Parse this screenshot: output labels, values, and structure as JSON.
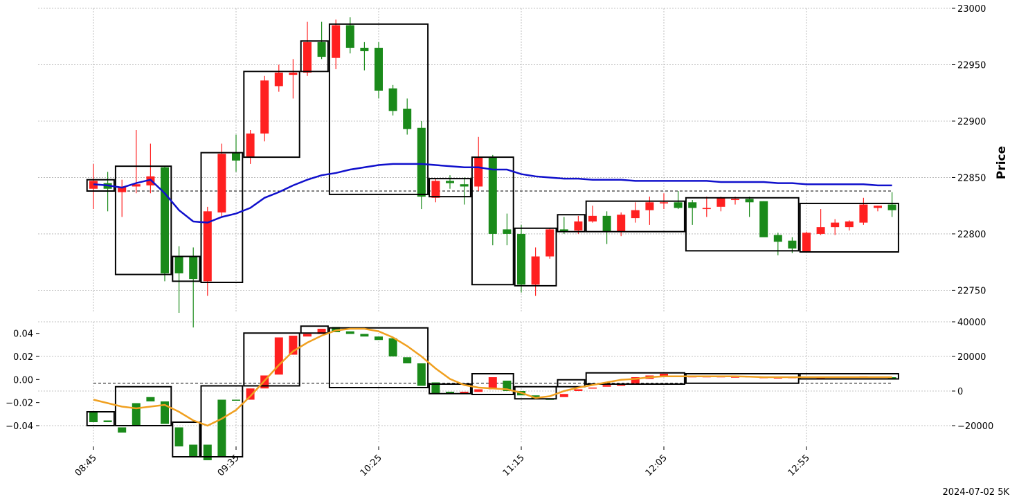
{
  "footer_text": "2024-07-02 5K",
  "colors": {
    "up": "#1a8a1a",
    "down": "#ff2020",
    "ma_price": "#1010cc",
    "ma_volume": "#f0a020",
    "box": "#000000",
    "grid": "#b0b0b0"
  },
  "chart_data": [
    {
      "type": "candlestick",
      "panel": "price",
      "ylabel": "Price",
      "ylim": [
        22730,
        23000
      ],
      "yticks": [
        22750,
        22800,
        22850,
        22900,
        22950,
        23000
      ],
      "x": [
        "08:45",
        "08:50",
        "08:55",
        "09:00",
        "09:05",
        "09:10",
        "09:15",
        "09:20",
        "09:25",
        "09:30",
        "09:35",
        "09:40",
        "09:45",
        "09:50",
        "09:55",
        "10:00",
        "10:05",
        "10:10",
        "10:15",
        "10:20",
        "10:25",
        "10:30",
        "10:35",
        "10:40",
        "10:45",
        "10:50",
        "10:55",
        "11:00",
        "11:05",
        "11:10",
        "11:15",
        "11:20",
        "11:25",
        "11:30",
        "11:35",
        "11:40",
        "11:45",
        "11:50",
        "11:55",
        "12:00",
        "12:05",
        "12:10",
        "12:15",
        "12:20",
        "12:25",
        "12:30",
        "12:35",
        "12:40",
        "12:45",
        "12:50",
        "12:55",
        "13:00",
        "13:05",
        "13:10",
        "13:15",
        "13:20",
        "13:25"
      ],
      "xticks": [
        "08:45",
        "09:35",
        "10:25",
        "11:15",
        "12:05",
        "12:55"
      ],
      "ohlc": [
        [
          22840,
          22862,
          22822,
          22847
        ],
        [
          22845,
          22855,
          22820,
          22840
        ],
        [
          22837,
          22848,
          22815,
          22842
        ],
        [
          22842,
          22892,
          22836,
          22844
        ],
        [
          22843,
          22880,
          22836,
          22851
        ],
        [
          22859,
          22860,
          22758,
          22765
        ],
        [
          22780,
          22789,
          22730,
          22765
        ],
        [
          22780,
          22788,
          22717,
          22760
        ],
        [
          22758,
          22824,
          22745,
          22820
        ],
        [
          22819,
          22880,
          22815,
          22871
        ],
        [
          22872,
          22888,
          22855,
          22865
        ],
        [
          22868,
          22892,
          22862,
          22889
        ],
        [
          22889,
          22940,
          22882,
          22936
        ],
        [
          22931,
          22950,
          22926,
          22943
        ],
        [
          22941,
          22955,
          22920,
          22943
        ],
        [
          22943,
          22988,
          22940,
          22970
        ],
        [
          22970,
          22988,
          22955,
          22957
        ],
        [
          22956,
          22990,
          22946,
          22985
        ],
        [
          22985,
          22992,
          22960,
          22965
        ],
        [
          22965,
          22970,
          22945,
          22962
        ],
        [
          22965,
          22970,
          22920,
          22927
        ],
        [
          22929,
          22932,
          22905,
          22909
        ],
        [
          22911,
          22920,
          22888,
          22893
        ],
        [
          22894,
          22900,
          22822,
          22833
        ],
        [
          22832,
          22849,
          22828,
          22847
        ],
        [
          22847,
          22852,
          22840,
          22845
        ],
        [
          22844,
          22850,
          22826,
          22842
        ],
        [
          22842,
          22886,
          22838,
          22868
        ],
        [
          22868,
          22870,
          22790,
          22800
        ],
        [
          22804,
          22818,
          22790,
          22800
        ],
        [
          22800,
          22808,
          22748,
          22755
        ],
        [
          22755,
          22788,
          22745,
          22780
        ],
        [
          22780,
          22805,
          22778,
          22804
        ],
        [
          22804,
          22815,
          22800,
          22802
        ],
        [
          22803,
          22816,
          22800,
          22811
        ],
        [
          22811,
          22825,
          22810,
          22816
        ],
        [
          22816,
          22820,
          22791,
          22802
        ],
        [
          22802,
          22819,
          22798,
          22817
        ],
        [
          22814,
          22828,
          22810,
          22821
        ],
        [
          22821,
          22833,
          22808,
          22828
        ],
        [
          22827,
          22836,
          22822,
          22828
        ],
        [
          22828,
          22838,
          22822,
          22823
        ],
        [
          22828,
          22830,
          22808,
          22823
        ],
        [
          22822,
          22833,
          22815,
          22823
        ],
        [
          22824,
          22833,
          22820,
          22832
        ],
        [
          22830,
          22833,
          22826,
          22831
        ],
        [
          22831,
          22833,
          22815,
          22828
        ],
        [
          22829,
          22829,
          22798,
          22797
        ],
        [
          22799,
          22801,
          22781,
          22793
        ],
        [
          22794,
          22797,
          22783,
          22787
        ],
        [
          22784,
          22802,
          22784,
          22801
        ],
        [
          22800,
          22822,
          22799,
          22806
        ],
        [
          22806,
          22813,
          22799,
          22810
        ],
        [
          22806,
          22812,
          22803,
          22811
        ],
        [
          22810,
          22832,
          22808,
          22826
        ],
        [
          22823,
          22825,
          22820,
          22825
        ],
        [
          22826,
          22837,
          22815,
          22821
        ]
      ],
      "series": [
        {
          "name": "",
          "values": [
            22844,
            22843,
            22841,
            22845,
            22848,
            22836,
            22821,
            22811,
            22810,
            22815,
            22818,
            22823,
            22832,
            22837,
            22843,
            22848,
            22852,
            22854,
            22857,
            22859,
            22861,
            22862,
            22862,
            22862,
            22861,
            22860,
            22859,
            22859,
            22857,
            22857,
            22853,
            22851,
            22850,
            22849,
            22849,
            22848,
            22848,
            22848,
            22847,
            22847,
            22847,
            22847,
            22847,
            22847,
            22846,
            22846,
            22846,
            22846,
            22845,
            22845,
            22844,
            22844,
            22844,
            22844,
            22844,
            22843,
            22843
          ]
        }
      ],
      "reference_line": 22838,
      "boxes": [
        {
          "from": "08:45",
          "to": "08:50",
          "low": 22838,
          "high": 22848
        },
        {
          "from": "08:55",
          "to": "09:10",
          "low": 22764,
          "high": 22860
        },
        {
          "from": "09:15",
          "to": "09:20",
          "low": 22758,
          "high": 22780
        },
        {
          "from": "09:25",
          "to": "09:35",
          "low": 22757,
          "high": 22872
        },
        {
          "from": "09:40",
          "to": "09:55",
          "low": 22868,
          "high": 22944
        },
        {
          "from": "10:00",
          "to": "10:05",
          "low": 22944,
          "high": 22971
        },
        {
          "from": "10:10",
          "to": "10:40",
          "low": 22835,
          "high": 22986
        },
        {
          "from": "10:45",
          "to": "10:55",
          "low": 22833,
          "high": 22849
        },
        {
          "from": "11:00",
          "to": "11:10",
          "low": 22755,
          "high": 22868
        },
        {
          "from": "11:15",
          "to": "11:25",
          "low": 22754,
          "high": 22805
        },
        {
          "from": "11:30",
          "to": "11:35",
          "low": 22802,
          "high": 22817
        },
        {
          "from": "11:40",
          "to": "12:10",
          "low": 22802,
          "high": 22829
        },
        {
          "from": "12:15",
          "to": "12:50",
          "low": 22785,
          "high": 22832
        },
        {
          "from": "12:55",
          "to": "13:25",
          "low": 22784,
          "high": 22827
        }
      ]
    },
    {
      "type": "bar",
      "panel": "indicator",
      "ylim_left": [
        -0.055,
        0.05
      ],
      "yticks_left": [
        -0.04,
        -0.02,
        0.0,
        0.02,
        0.04
      ],
      "ylim_right": [
        -30000,
        40000
      ],
      "yticks_right": [
        -20000,
        0,
        20000,
        40000
      ],
      "bars": [
        [
          -12000,
          -18000
        ],
        [
          -17000,
          -18000
        ],
        [
          -21000,
          -24000
        ],
        [
          -7000,
          -20000
        ],
        [
          -3500,
          -6000
        ],
        [
          -6000,
          -19000
        ],
        [
          -21000,
          -32000
        ],
        [
          -31000,
          -38000
        ],
        [
          -31000,
          -40000
        ],
        [
          -5000,
          -38000
        ],
        [
          -5000,
          -5500
        ],
        [
          -5000,
          1500
        ],
        [
          1500,
          9000
        ],
        [
          9500,
          31000
        ],
        [
          21000,
          32000
        ],
        [
          31500,
          33000
        ],
        [
          33000,
          36000
        ],
        [
          37000,
          34000
        ],
        [
          34500,
          33000
        ],
        [
          33000,
          31500
        ],
        [
          31500,
          29500
        ],
        [
          30500,
          20000
        ],
        [
          19500,
          16000
        ],
        [
          16000,
          3000
        ],
        [
          5000,
          -1500
        ],
        [
          -400,
          -1500
        ],
        [
          -1500,
          -400
        ],
        [
          -500,
          1000
        ],
        [
          1000,
          8000
        ],
        [
          6000,
          0
        ],
        [
          0,
          -2500
        ],
        [
          -2500,
          -4500
        ],
        [
          -4500,
          -5000
        ],
        [
          -3500,
          -1700
        ],
        [
          0,
          1000
        ],
        [
          1500,
          2000
        ],
        [
          2500,
          3500
        ],
        [
          3000,
          4000
        ],
        [
          4500,
          8000
        ],
        [
          7000,
          9000
        ],
        [
          8500,
          10000
        ],
        [
          8500,
          9000
        ],
        [
          8000,
          8500
        ],
        [
          8000,
          8500
        ],
        [
          8000,
          8500
        ],
        [
          8000,
          8300
        ],
        [
          8000,
          8500
        ],
        [
          7500,
          8000
        ],
        [
          7500,
          7800
        ],
        [
          7800,
          8000
        ],
        [
          8000,
          8300
        ],
        [
          7800,
          8000
        ],
        [
          8000,
          8200
        ],
        [
          8000,
          8200
        ],
        [
          8000,
          8500
        ],
        [
          8000,
          8300
        ],
        [
          8000,
          7500
        ]
      ],
      "series": [
        {
          "name": "",
          "values": [
            -5000,
            -7000,
            -9000,
            -10000,
            -9000,
            -8000,
            -12000,
            -17000,
            -20000,
            -16000,
            -11000,
            -3000,
            6000,
            15000,
            23000,
            28000,
            32000,
            35000,
            36000,
            36000,
            34500,
            31000,
            26000,
            20000,
            13000,
            7000,
            3500,
            2000,
            1500,
            1000,
            -1000,
            -4000,
            -3000,
            0,
            2000,
            3500,
            5000,
            6500,
            7000,
            8000,
            8500,
            8500,
            8500,
            8500,
            8500,
            8500,
            8300,
            8000,
            8000,
            8000,
            8000,
            8000,
            8000,
            8000,
            8000,
            8000,
            8000
          ]
        }
      ],
      "reference_line": 4500,
      "boxes": [
        {
          "from": "08:45",
          "to": "08:50",
          "low": -20000,
          "high": -12000
        },
        {
          "from": "08:55",
          "to": "09:10",
          "low": -20000,
          "high": 2500
        },
        {
          "from": "09:15",
          "to": "09:20",
          "low": -38000,
          "high": -18000
        },
        {
          "from": "09:25",
          "to": "09:35",
          "low": -38000,
          "high": 3000
        },
        {
          "from": "09:40",
          "to": "09:55",
          "low": 3000,
          "high": 33500
        },
        {
          "from": "10:00",
          "to": "10:05",
          "low": 33500,
          "high": 37500
        },
        {
          "from": "10:10",
          "to": "10:40",
          "low": 2000,
          "high": 36500
        },
        {
          "from": "10:45",
          "to": "10:55",
          "low": -1500,
          "high": 4000
        },
        {
          "from": "11:00",
          "to": "11:10",
          "low": -2000,
          "high": 10000
        },
        {
          "from": "11:15",
          "to": "11:25",
          "low": -4500,
          "high": 2500
        },
        {
          "from": "11:30",
          "to": "11:35",
          "low": 2500,
          "high": 6500
        },
        {
          "from": "11:40",
          "to": "12:10",
          "low": 4000,
          "high": 10500
        },
        {
          "from": "12:15",
          "to": "12:50",
          "low": 4500,
          "high": 10000
        },
        {
          "from": "12:55",
          "to": "13:25",
          "low": 7000,
          "high": 10000
        }
      ]
    }
  ]
}
